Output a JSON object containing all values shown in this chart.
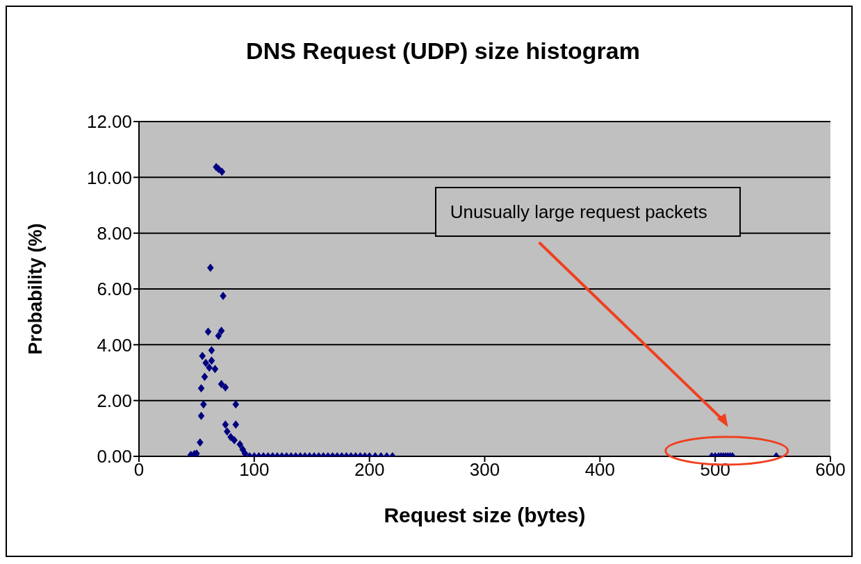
{
  "chart_data": {
    "type": "scatter",
    "title": "DNS Request (UDP) size histogram",
    "xlabel": "Request size (bytes)",
    "ylabel": "Probability (%)",
    "xlim": [
      0,
      600
    ],
    "xticks": [
      0,
      100,
      200,
      300,
      400,
      500,
      600
    ],
    "ylim": [
      0,
      12
    ],
    "yticks": [
      {
        "value": 0,
        "label": "0.00"
      },
      {
        "value": 2,
        "label": "2.00"
      },
      {
        "value": 4,
        "label": "4.00"
      },
      {
        "value": 6,
        "label": "6.00"
      },
      {
        "value": 8,
        "label": "8.00"
      },
      {
        "value": 10,
        "label": "10.00"
      },
      {
        "value": 12,
        "label": "12.00"
      }
    ],
    "grid": "y",
    "marker": "diamond",
    "annotations": [
      "Unusually large request packets"
    ],
    "series": [
      {
        "color": "#000080",
        "x": [
          45,
          48,
          50,
          53,
          54,
          54,
          55,
          56,
          57,
          58,
          60,
          61,
          62,
          63,
          63,
          66,
          67,
          69,
          69,
          71.5,
          71.5,
          72,
          73,
          75,
          75,
          76.5,
          79.6,
          82.7,
          84,
          84,
          87.6,
          90,
          92,
          96,
          100,
          104,
          108,
          112,
          116,
          120,
          124,
          128,
          132,
          136,
          140,
          144,
          148,
          152,
          156,
          160,
          164,
          168,
          172,
          176,
          180,
          184,
          188,
          192,
          196,
          200,
          205,
          210,
          215,
          220,
          497,
          500,
          503,
          505,
          507,
          509,
          511,
          513,
          515,
          553
        ],
        "values": [
          0.05,
          0.08,
          0.1,
          0.5,
          2.44,
          1.45,
          3.6,
          1.86,
          2.85,
          3.35,
          4.47,
          3.18,
          6.76,
          3.8,
          3.43,
          3.13,
          10.37,
          10.3,
          4.32,
          4.5,
          2.59,
          10.2,
          5.75,
          2.47,
          1.14,
          0.89,
          0.69,
          0.58,
          1.86,
          1.14,
          0.43,
          0.25,
          0.1,
          0,
          0,
          0,
          0,
          0,
          0,
          0,
          0,
          0,
          0,
          0,
          0,
          0,
          0,
          0,
          0,
          0,
          0,
          0,
          0,
          0,
          0,
          0,
          0,
          0,
          0,
          0,
          0,
          0,
          0,
          0,
          0,
          0,
          0,
          0,
          0,
          0,
          0,
          0,
          0,
          0
        ]
      }
    ]
  }
}
